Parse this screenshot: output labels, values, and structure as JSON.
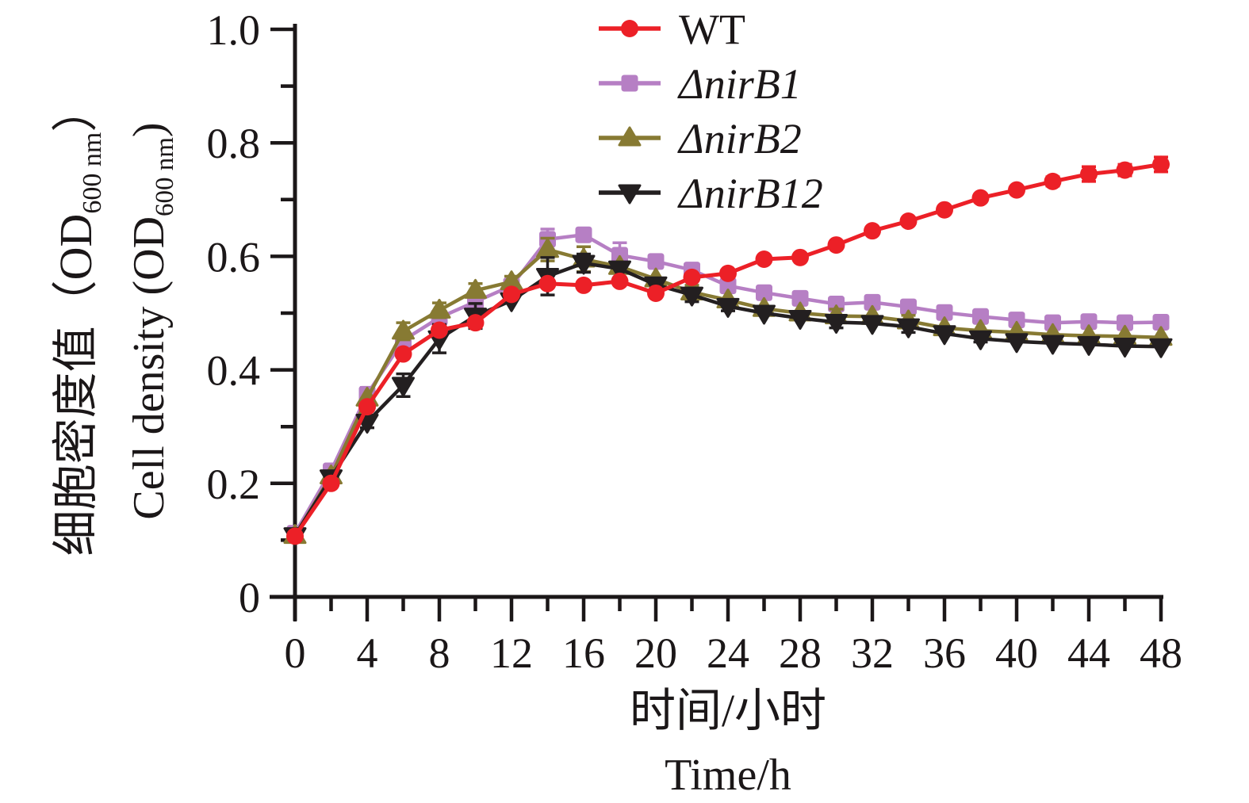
{
  "figure": {
    "background": "#ffffff",
    "axis_color": "#1b1718"
  },
  "chart_data": {
    "type": "line",
    "title": "",
    "xlabel_cn": "时间/小时",
    "xlabel_en": "Time/h",
    "ylabel_cn_prefix": "细胞密度值（OD",
    "ylabel_cn_suffix": "）",
    "ylabel_en_prefix": "Cell density (OD",
    "ylabel_en_suffix": ")",
    "ylabel_subscript": "600 nm",
    "xlim": [
      0,
      48
    ],
    "ylim": [
      0,
      1.0
    ],
    "grid": false,
    "legend_position": "top-center",
    "x_major_ticks": [
      0,
      4,
      8,
      12,
      16,
      20,
      24,
      28,
      32,
      36,
      40,
      44,
      48
    ],
    "x_minor_ticks": [
      2,
      6,
      10,
      14,
      18,
      22,
      26,
      30,
      34,
      38,
      42,
      46
    ],
    "y_major_ticks": [
      {
        "v": 0,
        "label": "0"
      },
      {
        "v": 0.2,
        "label": "0.2"
      },
      {
        "v": 0.4,
        "label": "0.4"
      },
      {
        "v": 0.6,
        "label": "0.6"
      },
      {
        "v": 0.8,
        "label": "0.8"
      },
      {
        "v": 1.0,
        "label": "1.0"
      }
    ],
    "y_minor_ticks": [
      0.1,
      0.3,
      0.5,
      0.7,
      0.9
    ],
    "x": [
      0,
      2,
      4,
      6,
      8,
      10,
      12,
      14,
      16,
      18,
      20,
      22,
      24,
      26,
      28,
      30,
      32,
      34,
      36,
      38,
      40,
      42,
      44,
      46,
      48
    ],
    "series": [
      {
        "name": "nirB1",
        "legend_label": "ΔnirB1",
        "legend_italic": true,
        "color": "#b67fc4",
        "marker": "square",
        "values": [
          0.112,
          0.222,
          0.357,
          0.452,
          0.492,
          0.52,
          0.548,
          0.63,
          0.638,
          0.602,
          0.591,
          0.576,
          0.548,
          0.536,
          0.526,
          0.516,
          0.519,
          0.511,
          0.501,
          0.494,
          0.488,
          0.483,
          0.485,
          0.483,
          0.484
        ],
        "errors": [
          0,
          0.01,
          0.012,
          0,
          0,
          0,
          0,
          0.018,
          0,
          0.022,
          0,
          0.01,
          0,
          0,
          0,
          0,
          0,
          0,
          0,
          0,
          0,
          0,
          0.008,
          0,
          0.006
        ]
      },
      {
        "name": "nirB2",
        "legend_label": "ΔnirB2",
        "legend_italic": true,
        "color": "#877a33",
        "marker": "triangle-up",
        "values": [
          0.108,
          0.213,
          0.35,
          0.468,
          0.505,
          0.54,
          0.555,
          0.612,
          0.595,
          0.582,
          0.56,
          0.537,
          0.523,
          0.508,
          0.5,
          0.495,
          0.494,
          0.486,
          0.474,
          0.469,
          0.466,
          0.462,
          0.46,
          0.459,
          0.457
        ],
        "errors": [
          0,
          0,
          0,
          0.015,
          0.013,
          0.012,
          0.01,
          0.02,
          0.022,
          0,
          0,
          0.012,
          0,
          0,
          0,
          0.012,
          0,
          0.01,
          0,
          0,
          0,
          0,
          0,
          0,
          0
        ]
      },
      {
        "name": "nirB12",
        "legend_label": "ΔnirB12",
        "legend_italic": true,
        "color": "#231f20",
        "marker": "triangle-down",
        "values": [
          0.108,
          0.21,
          0.308,
          0.373,
          0.455,
          0.495,
          0.522,
          0.565,
          0.588,
          0.578,
          0.55,
          0.532,
          0.512,
          0.5,
          0.491,
          0.484,
          0.482,
          0.476,
          0.464,
          0.455,
          0.45,
          0.447,
          0.445,
          0.442,
          0.441
        ],
        "errors": [
          0,
          0,
          0.01,
          0.02,
          0.025,
          0.022,
          0,
          0.033,
          0.016,
          0,
          0,
          0.012,
          0.008,
          0,
          0,
          0.01,
          0,
          0.01,
          0,
          0.006,
          0,
          0,
          0,
          0,
          0
        ]
      },
      {
        "name": "WT",
        "legend_label": "WT",
        "legend_italic": false,
        "color": "#ec2027",
        "marker": "circle",
        "values": [
          0.107,
          0.2,
          0.335,
          0.428,
          0.47,
          0.483,
          0.533,
          0.552,
          0.549,
          0.556,
          0.535,
          0.563,
          0.57,
          0.595,
          0.598,
          0.62,
          0.645,
          0.662,
          0.682,
          0.703,
          0.717,
          0.732,
          0.745,
          0.752,
          0.762
        ],
        "errors": [
          0,
          0,
          0,
          0,
          0,
          0,
          0,
          0,
          0,
          0,
          0,
          0,
          0,
          0.006,
          0,
          0,
          0,
          0,
          0,
          0,
          0,
          0.008,
          0.013,
          0.01,
          0.013
        ]
      }
    ],
    "legend_order": [
      "WT",
      "nirB1",
      "nirB2",
      "nirB12"
    ]
  }
}
